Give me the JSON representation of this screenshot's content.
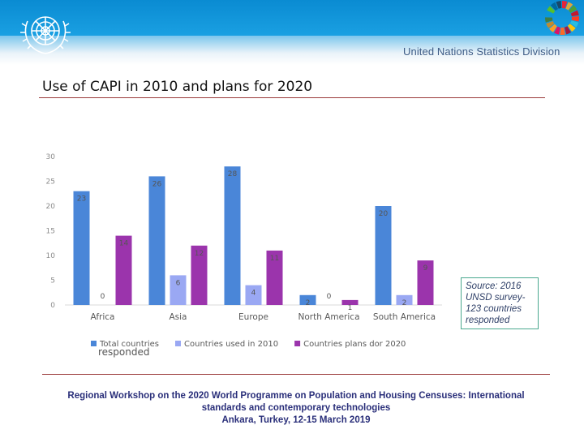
{
  "header": {
    "organization": "United Nations Statistics Division",
    "colors": {
      "band": "#1a9fe0",
      "division_text": "#3e5c86"
    }
  },
  "slide": {
    "title": "Use of CAPI in 2010 and plans for 2020"
  },
  "source_note": {
    "lines": [
      "Source:  2016",
      "UNSD survey-",
      "123 countries",
      "responded"
    ]
  },
  "overlay_text": "responded",
  "footer": {
    "lines": [
      "Regional Workshop on the 2020 World Programme on Population and Housing Censuses: International",
      "standards and contemporary technologies",
      "Ankara, Turkey, 12-15 March 2019"
    ]
  },
  "chart_data": {
    "type": "bar",
    "title": "",
    "xlabel": "",
    "ylabel": "",
    "ylim": [
      0,
      30
    ],
    "yticks": [
      "0",
      "5",
      "10",
      "15",
      "20",
      "25",
      "30"
    ],
    "grid": false,
    "legend_position": "bottom",
    "categories": [
      "Africa",
      "Asia",
      "Europe",
      "North America",
      "South America"
    ],
    "series": [
      {
        "name": "Total countries",
        "color": "#4a86d8",
        "values": [
          23,
          26,
          28,
          2,
          20
        ],
        "labels": [
          "23",
          "26",
          "28",
          "2",
          "20"
        ]
      },
      {
        "name": "Countries used in 2010",
        "color": "#9aa8f3",
        "values": [
          0,
          6,
          4,
          0,
          2
        ],
        "labels": [
          "0",
          "6",
          "4",
          "0",
          "2"
        ]
      },
      {
        "name": "Countries plans dor 2020",
        "color": "#9b34ac",
        "values": [
          14,
          12,
          11,
          1,
          9
        ],
        "labels": [
          "14",
          "12",
          "11",
          "1",
          "9"
        ]
      }
    ]
  }
}
